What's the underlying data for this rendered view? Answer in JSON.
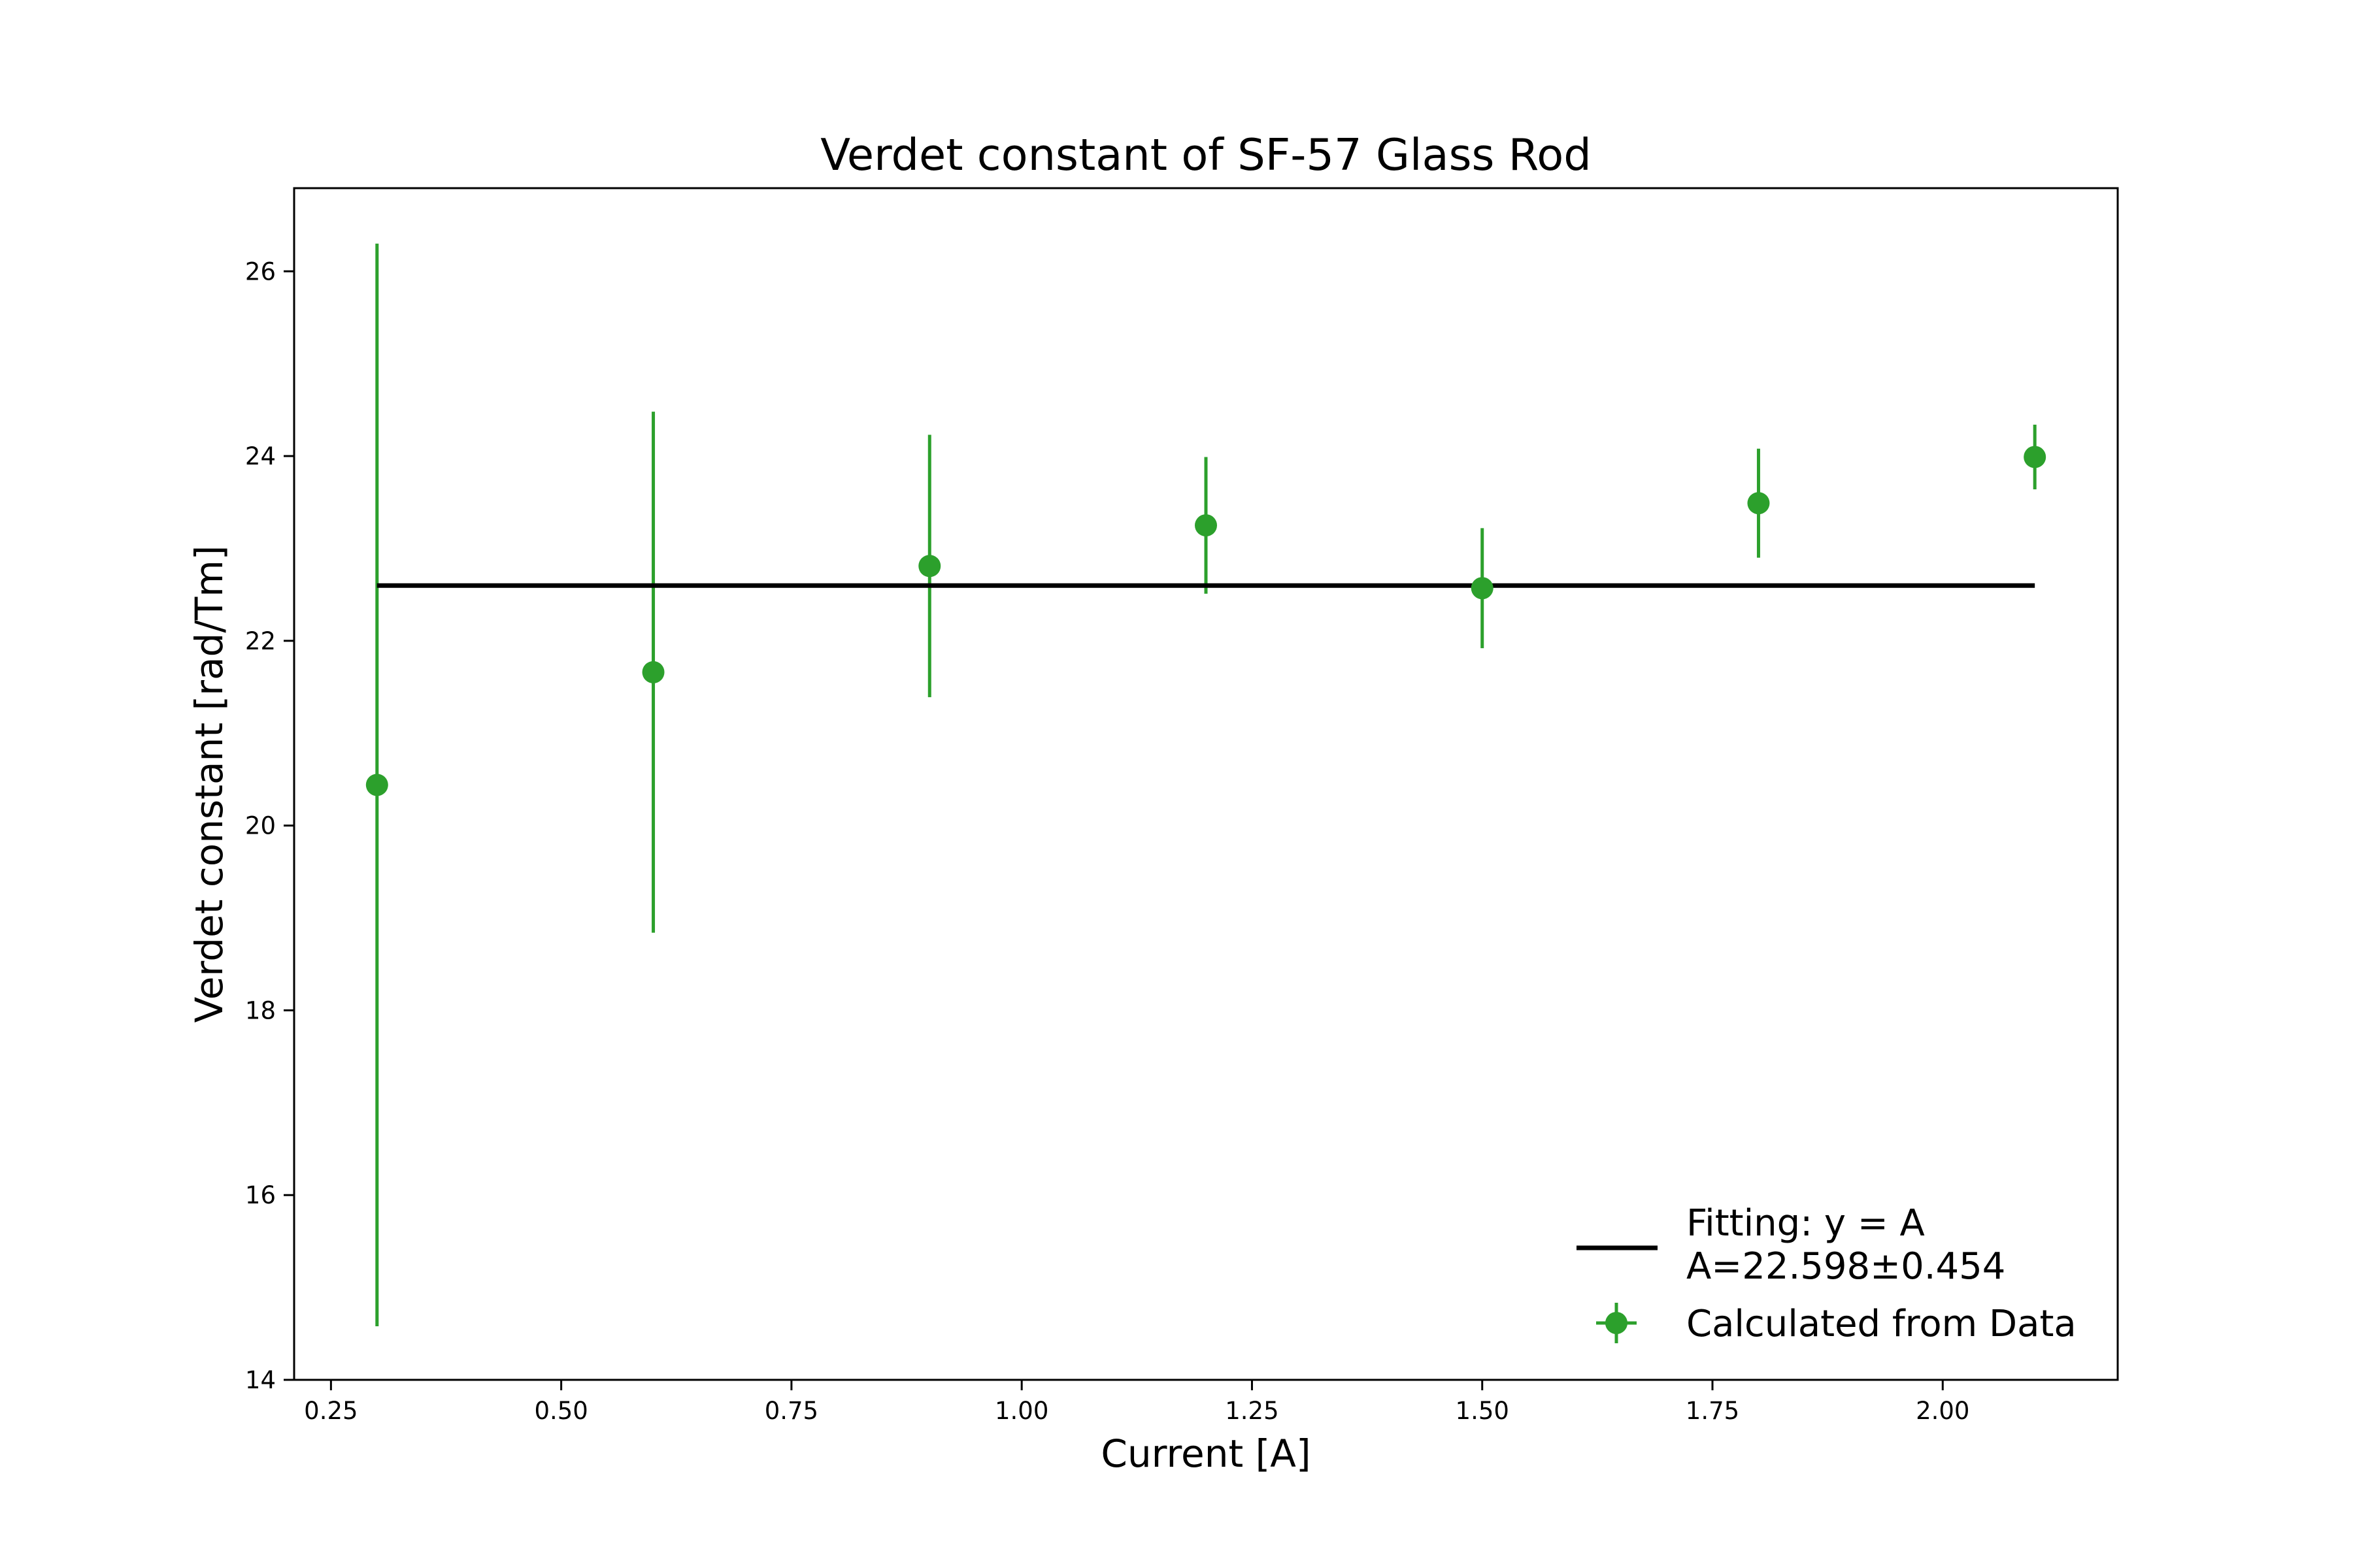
{
  "chart_data": {
    "type": "scatter",
    "title": "Verdet constant of SF-57 Glass Rod",
    "xlabel": "Current [A]",
    "ylabel": "Verdet constant [rad/Tm]",
    "xlim": [
      0.21,
      2.19
    ],
    "ylim": [
      14,
      26.9
    ],
    "xticks": [
      0.25,
      0.5,
      0.75,
      1.0,
      1.25,
      1.5,
      1.75,
      2.0
    ],
    "xtick_labels": [
      "0.25",
      "0.50",
      "0.75",
      "1.00",
      "1.25",
      "1.50",
      "1.75",
      "2.00"
    ],
    "yticks": [
      14,
      16,
      18,
      20,
      22,
      24,
      26
    ],
    "ytick_labels": [
      "14",
      "16",
      "18",
      "20",
      "22",
      "24",
      "26"
    ],
    "grid": false,
    "legend_position": "lower-right",
    "colors": {
      "data": "#2ca02c",
      "fit": "#000000"
    },
    "series": [
      {
        "name": "Calculated from Data",
        "kind": "errorbar",
        "x": [
          0.3,
          0.6,
          0.9,
          1.2,
          1.5,
          1.8,
          2.1
        ],
        "y": [
          20.44,
          21.66,
          22.81,
          23.25,
          22.57,
          23.49,
          23.99
        ],
        "yerr": [
          5.86,
          2.82,
          1.42,
          0.74,
          0.65,
          0.59,
          0.35
        ]
      },
      {
        "name": "Fitting: y = A",
        "name_line2": "A=22.598±0.454",
        "kind": "line",
        "x": [
          0.3,
          2.1
        ],
        "y": [
          22.598,
          22.598
        ]
      }
    ]
  }
}
